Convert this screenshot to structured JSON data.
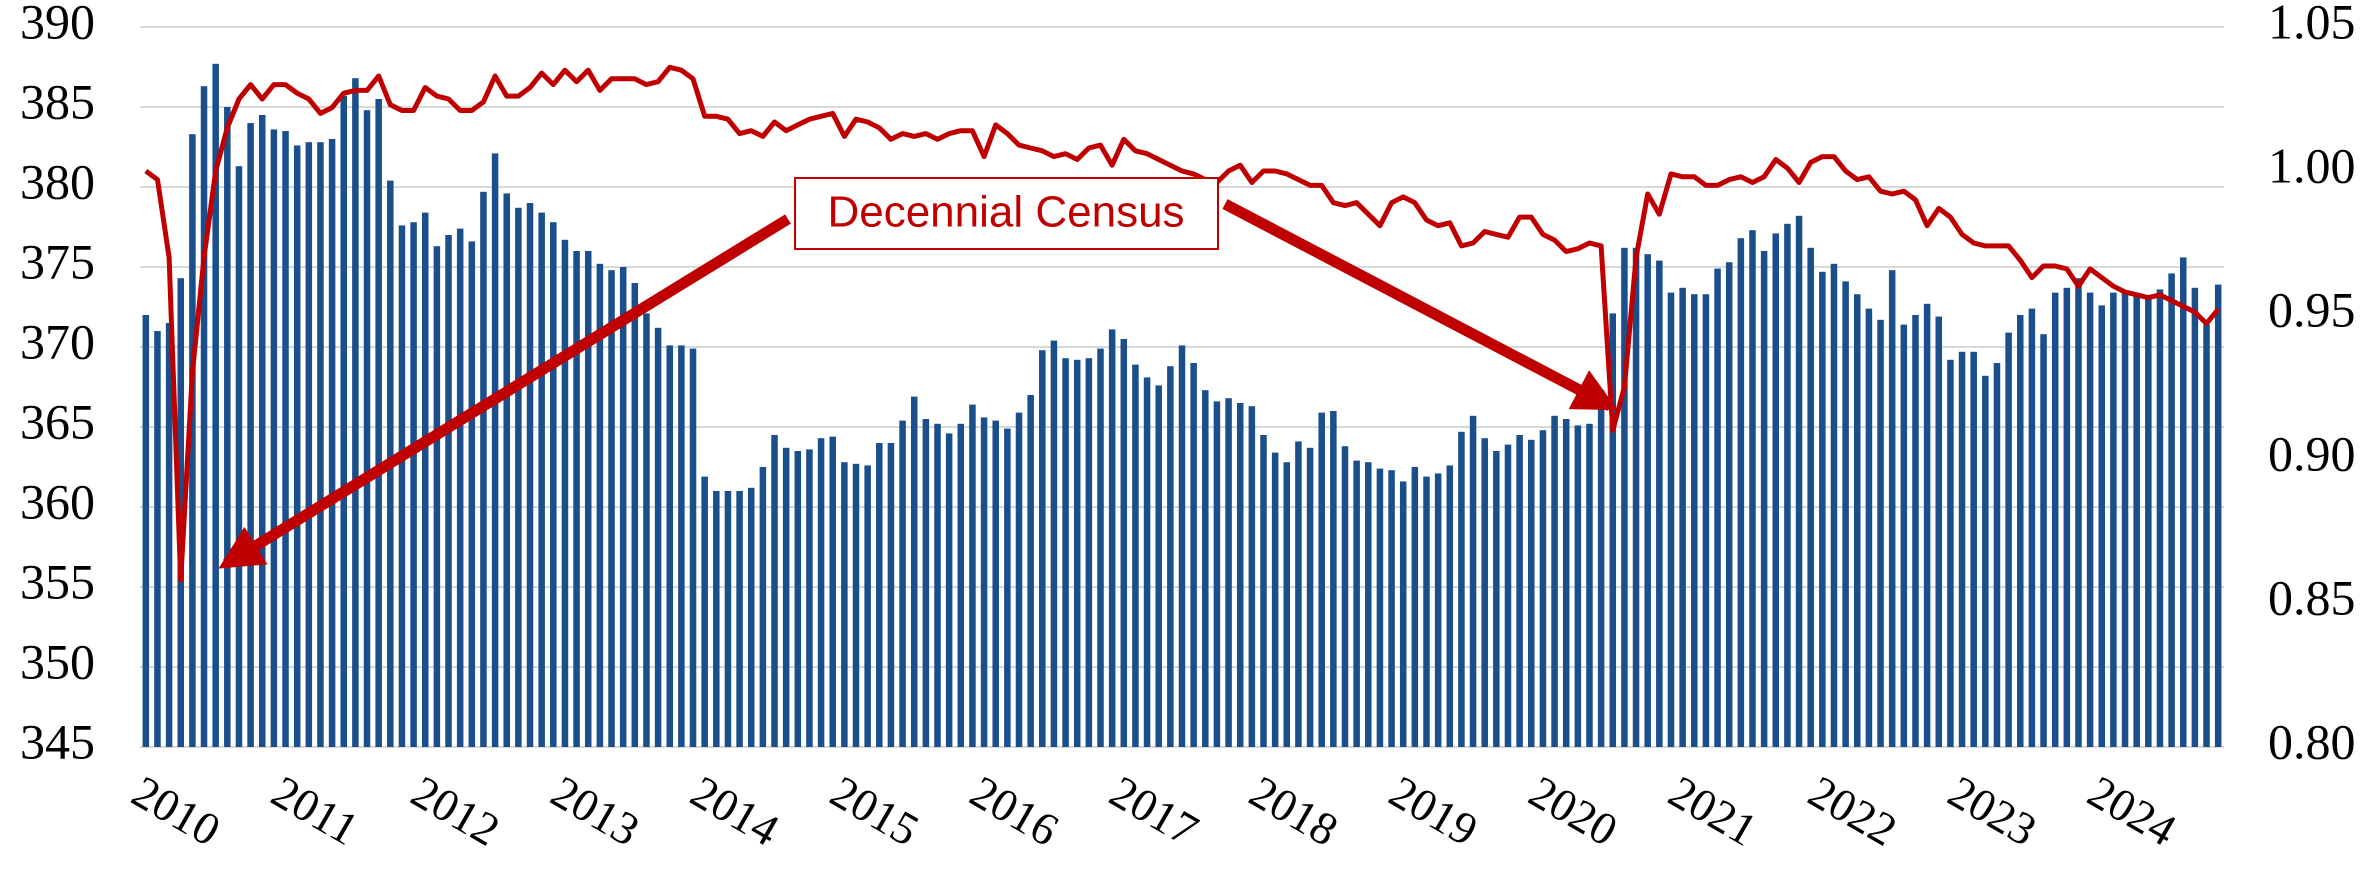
{
  "chart_data": {
    "type": "bar",
    "categories": [
      "2010",
      null,
      null,
      null,
      null,
      null,
      null,
      null,
      null,
      null,
      null,
      null,
      "2011",
      null,
      null,
      null,
      null,
      null,
      null,
      null,
      null,
      null,
      null,
      null,
      "2012",
      null,
      null,
      null,
      null,
      null,
      null,
      null,
      null,
      null,
      null,
      null,
      "2013",
      null,
      null,
      null,
      null,
      null,
      null,
      null,
      null,
      null,
      null,
      null,
      "2014",
      null,
      null,
      null,
      null,
      null,
      null,
      null,
      null,
      null,
      null,
      null,
      "2015",
      null,
      null,
      null,
      null,
      null,
      null,
      null,
      null,
      null,
      null,
      null,
      "2016",
      null,
      null,
      null,
      null,
      null,
      null,
      null,
      null,
      null,
      null,
      null,
      "2017",
      null,
      null,
      null,
      null,
      null,
      null,
      null,
      null,
      null,
      null,
      null,
      "2018",
      null,
      null,
      null,
      null,
      null,
      null,
      null,
      null,
      null,
      null,
      null,
      "2019",
      null,
      null,
      null,
      null,
      null,
      null,
      null,
      null,
      null,
      null,
      null,
      "2020",
      null,
      null,
      null,
      null,
      null,
      null,
      null,
      null,
      null,
      null,
      null,
      "2021",
      null,
      null,
      null,
      null,
      null,
      null,
      null,
      null,
      null,
      null,
      null,
      "2022",
      null,
      null,
      null,
      null,
      null,
      null,
      null,
      null,
      null,
      null,
      null,
      "2023",
      null,
      null,
      null,
      null,
      null,
      null,
      null,
      null,
      null,
      null,
      null,
      "2024",
      null,
      null,
      null,
      null,
      null,
      null,
      null,
      null,
      null,
      null
    ],
    "series": [
      {
        "type": "bar",
        "color": "#1a4f8b",
        "values": [
          372,
          371,
          371.5,
          374.3,
          383.3,
          386.3,
          387.7,
          385,
          381.3,
          384,
          384.5,
          383.6,
          383.5,
          382.6,
          382.8,
          382.8,
          383,
          385.7,
          386.8,
          384.8,
          385.5,
          380.4,
          377.6,
          377.8,
          378.4,
          376.3,
          377,
          377.4,
          376.6,
          379.7,
          382.1,
          379.6,
          378.7,
          379,
          378.4,
          377.8,
          376.7,
          376,
          376,
          375.2,
          374.8,
          375,
          374,
          372.1,
          371.2,
          370.1,
          370.1,
          369.9,
          361.9,
          361,
          361,
          361,
          361.2,
          362.5,
          364.5,
          363.7,
          363.5,
          363.6,
          364.3,
          364.4,
          362.8,
          362.7,
          362.6,
          364,
          364,
          365.4,
          366.9,
          365.5,
          365.2,
          364.6,
          365.2,
          366.4,
          365.6,
          365.4,
          364.9,
          365.9,
          367,
          369.8,
          370.4,
          369.3,
          369.2,
          369.3,
          369.9,
          371.1,
          370.5,
          368.9,
          368.1,
          367.6,
          368.8,
          370.1,
          369,
          367.3,
          366.6,
          366.8,
          366.5,
          366.3,
          364.5,
          363.4,
          362.8,
          364.1,
          363.7,
          365.9,
          366,
          363.8,
          362.9,
          362.8,
          362.4,
          362.3,
          361.6,
          362.5,
          361.9,
          362.1,
          362.6,
          364.7,
          365.7,
          364.3,
          363.5,
          363.9,
          364.5,
          364.2,
          364.8,
          365.7,
          365.5,
          365.1,
          365.2,
          367.3,
          372.1,
          376.2,
          376.2,
          375.8,
          375.4,
          373.4,
          373.7,
          373.3,
          373.3,
          374.9,
          375.3,
          376.8,
          377.3,
          376,
          377.1,
          377.7,
          378.2,
          376.2,
          374.7,
          375.2,
          374.1,
          373.3,
          372.4,
          371.7,
          374.8,
          371.4,
          372,
          372.7,
          371.9,
          369.2,
          369.7,
          369.7,
          368.2,
          369,
          370.9,
          372,
          372.4,
          370.8,
          373.4,
          373.7,
          374.3,
          373.4,
          372.6,
          373.4,
          373.5,
          373.3,
          373.1,
          373.6,
          374.6,
          375.6,
          373.7,
          371.4,
          373.9
        ]
      },
      {
        "type": "line",
        "axis": "y2",
        "color": "#c00000",
        "values": [
          1.0,
          0.997,
          0.97,
          0.858,
          0.93,
          0.97,
          1.0,
          1.015,
          1.025,
          1.03,
          1.025,
          1.03,
          1.03,
          1.027,
          1.025,
          1.02,
          1.022,
          1.027,
          1.028,
          1.028,
          1.033,
          1.023,
          1.021,
          1.021,
          1.029,
          1.026,
          1.025,
          1.021,
          1.021,
          1.024,
          1.033,
          1.026,
          1.026,
          1.029,
          1.034,
          1.03,
          1.035,
          1.031,
          1.035,
          1.028,
          1.032,
          1.032,
          1.032,
          1.03,
          1.031,
          1.036,
          1.035,
          1.032,
          1.019,
          1.019,
          1.018,
          1.013,
          1.014,
          1.012,
          1.017,
          1.014,
          1.016,
          1.018,
          1.019,
          1.02,
          1.012,
          1.018,
          1.017,
          1.015,
          1.011,
          1.013,
          1.012,
          1.013,
          1.011,
          1.013,
          1.014,
          1.014,
          1.005,
          1.016,
          1.013,
          1.009,
          1.008,
          1.007,
          1.005,
          1.006,
          1.004,
          1.008,
          1.009,
          1.002,
          1.011,
          1.007,
          1.006,
          1.004,
          1.002,
          1.0,
          0.999,
          0.997,
          0.996,
          1.0,
          1.002,
          0.996,
          1.0,
          1.0,
          0.999,
          0.997,
          0.995,
          0.995,
          0.989,
          0.988,
          0.989,
          0.985,
          0.981,
          0.989,
          0.991,
          0.989,
          0.983,
          0.981,
          0.982,
          0.974,
          0.975,
          0.979,
          0.978,
          0.977,
          0.984,
          0.984,
          0.978,
          0.976,
          0.972,
          0.973,
          0.975,
          0.974,
          0.91,
          0.925,
          0.97,
          0.992,
          0.985,
          0.999,
          0.998,
          0.998,
          0.995,
          0.995,
          0.997,
          0.998,
          0.996,
          0.998,
          1.004,
          1.001,
          0.996,
          1.003,
          1.005,
          1.005,
          1.0,
          0.997,
          0.998,
          0.993,
          0.992,
          0.993,
          0.99,
          0.981,
          0.987,
          0.984,
          0.978,
          0.975,
          0.974,
          0.974,
          0.974,
          0.969,
          0.963,
          0.967,
          0.967,
          0.966,
          0.96,
          0.966,
          0.963,
          0.96,
          0.958,
          0.957,
          0.956,
          0.957,
          0.955,
          0.953,
          0.951,
          0.947,
          0.952
        ]
      }
    ],
    "ylim": [
      345,
      390
    ],
    "yticks": [
      345,
      350,
      355,
      360,
      365,
      370,
      375,
      380,
      385,
      390
    ],
    "y2lim": [
      0.8,
      1.05
    ],
    "y2ticks": [
      {
        "value": 0.8,
        "label": "0.80"
      },
      0.85,
      {
        "value": 0.9,
        "label": "0.90"
      },
      0.95,
      {
        "value": 1.0,
        "label": "1.00"
      },
      1.05
    ],
    "grid": true,
    "annotation": "Decennial Census"
  }
}
